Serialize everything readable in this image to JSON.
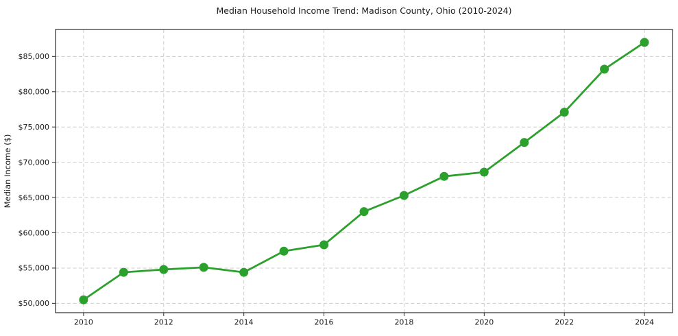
{
  "chart_data": {
    "type": "line",
    "title": "Median Household Income Trend: Madison County, Ohio (2010-2024)",
    "xlabel": "",
    "ylabel": "Median Income ($)",
    "x": [
      2010,
      2011,
      2012,
      2013,
      2014,
      2015,
      2016,
      2017,
      2018,
      2019,
      2020,
      2021,
      2022,
      2023,
      2024
    ],
    "series": [
      {
        "name": "Median Household Income",
        "values": [
          50500,
          54400,
          54800,
          55100,
          54400,
          57400,
          58300,
          63000,
          65300,
          68000,
          68600,
          72800,
          77100,
          83200,
          87000
        ]
      }
    ],
    "x_ticks": [
      2010,
      2012,
      2014,
      2016,
      2018,
      2020,
      2022,
      2024
    ],
    "x_tick_labels": [
      "2010",
      "2012",
      "2014",
      "2016",
      "2018",
      "2020",
      "2022",
      "2024"
    ],
    "y_ticks": [
      50000,
      55000,
      60000,
      65000,
      70000,
      75000,
      80000,
      85000
    ],
    "y_tick_labels": [
      "$50,000",
      "$55,000",
      "$60,000",
      "$65,000",
      "$70,000",
      "$75,000",
      "$80,000",
      "$85,000"
    ],
    "xlim": [
      2009.3,
      2024.7
    ],
    "ylim": [
      48675,
      88825
    ],
    "grid": "dashed-both-axes",
    "legend": "none",
    "line_color": "#2ca02c",
    "marker": "circle"
  }
}
